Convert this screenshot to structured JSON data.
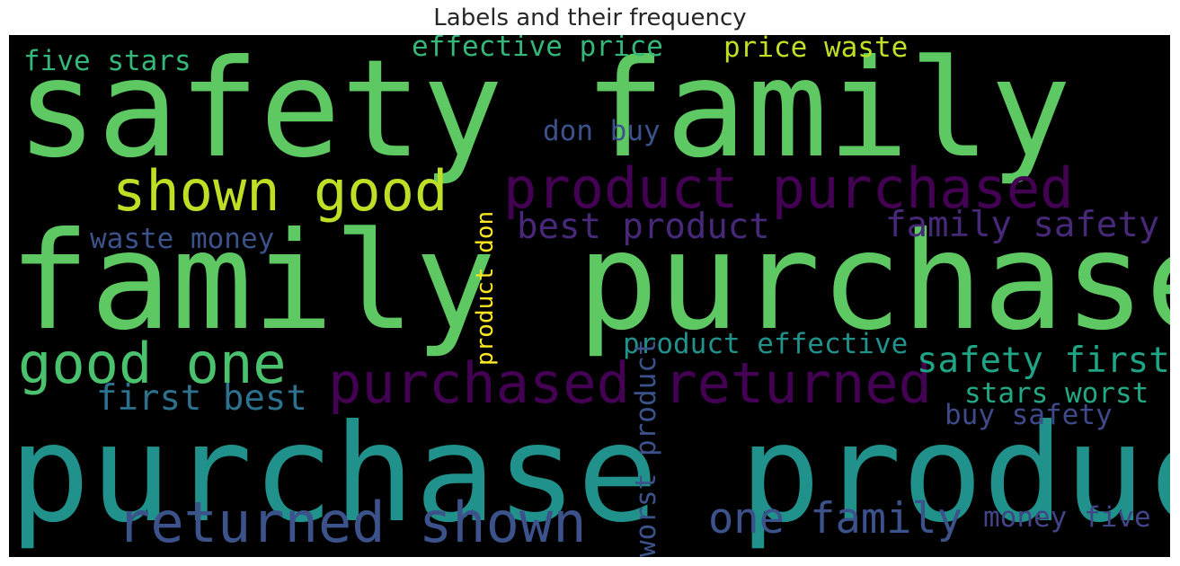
{
  "chart_data": {
    "type": "wordcloud",
    "title": "Labels and their frequency",
    "background": "#000000",
    "colormap": "viridis",
    "words": [
      {
        "text": "safety family",
        "color": "#5ec962",
        "orientation": "horizontal"
      },
      {
        "text": "family purchase",
        "color": "#5ec962",
        "orientation": "horizontal"
      },
      {
        "text": "purchase product",
        "color": "#21918c",
        "orientation": "horizontal"
      },
      {
        "text": "product purchased",
        "color": "#440154",
        "orientation": "horizontal"
      },
      {
        "text": "purchased returned",
        "color": "#440154",
        "orientation": "horizontal"
      },
      {
        "text": "returned shown",
        "color": "#3b528b",
        "orientation": "horizontal"
      },
      {
        "text": "shown good",
        "color": "#bddf26",
        "orientation": "horizontal"
      },
      {
        "text": "good one",
        "color": "#4ac16d",
        "orientation": "horizontal"
      },
      {
        "text": "one family",
        "color": "#3b528b",
        "orientation": "horizontal"
      },
      {
        "text": "family safety",
        "color": "#482878",
        "orientation": "horizontal"
      },
      {
        "text": "safety first",
        "color": "#20a486",
        "orientation": "horizontal"
      },
      {
        "text": "first best",
        "color": "#2c728e",
        "orientation": "horizontal"
      },
      {
        "text": "best product",
        "color": "#482878",
        "orientation": "horizontal"
      },
      {
        "text": "product effective",
        "color": "#21918c",
        "orientation": "horizontal"
      },
      {
        "text": "effective price",
        "color": "#35b779",
        "orientation": "horizontal"
      },
      {
        "text": "price waste",
        "color": "#bddf26",
        "orientation": "horizontal"
      },
      {
        "text": "waste money",
        "color": "#3b528b",
        "orientation": "horizontal"
      },
      {
        "text": "money five",
        "color": "#414487",
        "orientation": "horizontal"
      },
      {
        "text": "five stars",
        "color": "#35b779",
        "orientation": "horizontal"
      },
      {
        "text": "stars worst",
        "color": "#22a884",
        "orientation": "horizontal"
      },
      {
        "text": "worst product",
        "color": "#3b528b",
        "orientation": "vertical"
      },
      {
        "text": "product don",
        "color": "#fde725",
        "orientation": "vertical"
      },
      {
        "text": "don buy",
        "color": "#3b528b",
        "orientation": "horizontal"
      },
      {
        "text": "buy safety",
        "color": "#3e4a89",
        "orientation": "horizontal"
      }
    ]
  }
}
